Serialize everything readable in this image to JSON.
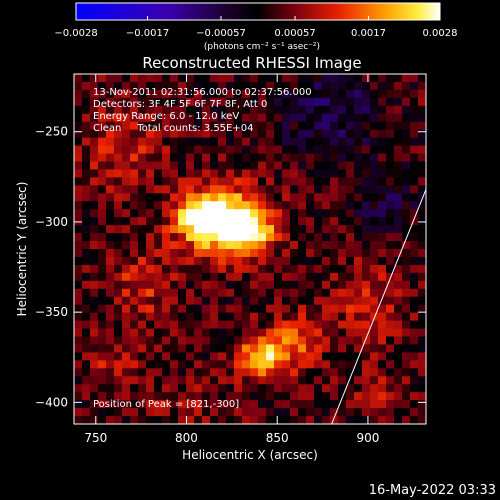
{
  "chart_data": {
    "type": "heatmap",
    "title": "Reconstructed RHESSI Image",
    "xlabel": "Heliocentric X (arcsec)",
    "ylabel": "Heliocentric Y (arcsec)",
    "xlim": [
      738,
      932
    ],
    "ylim": [
      -412,
      -218
    ],
    "x_ticks": [
      750,
      800,
      850,
      900
    ],
    "y_ticks": [
      -250,
      -300,
      -350,
      -400
    ],
    "x_tick_labels": [
      "750",
      "800",
      "850",
      "900"
    ],
    "y_tick_labels": [
      "−250",
      "−300",
      "−350",
      "−400"
    ],
    "colorbar": {
      "min": -0.0028,
      "max": 0.0028,
      "ticks": [
        -0.0028,
        -0.0017,
        -0.00057,
        0.00057,
        0.0017,
        0.0028
      ],
      "tick_labels": [
        "−0.0028",
        "−0.0017",
        "−0.00057",
        "0.00057",
        "0.0017",
        "0.0028"
      ],
      "units_label": "(photons cm⁻² s⁻¹ asec⁻²)",
      "colormap": "blue-purple-red-yellow-white"
    },
    "annotations": [
      "13-Nov-2011 02:31:56.000 to 02:37:56.000",
      "Detectors: 3F 4F 5F 6F 7F 8F, Att 0",
      "Energy Range: 6.0 - 12.0 keV",
      "Clean     Total counts: 3.55E+04"
    ],
    "peak_label": "Position of Peak = [821,-300]",
    "peak_position": [
      821,
      -300
    ],
    "sources": [
      {
        "x": 821,
        "y": -300,
        "rx": 22,
        "ry": 18,
        "amp": 0.0028
      },
      {
        "x": 806,
        "y": -297,
        "rx": 14,
        "ry": 12,
        "amp": 0.0014
      },
      {
        "x": 838,
        "y": -306,
        "rx": 13,
        "ry": 11,
        "amp": 0.0011
      },
      {
        "x": 842,
        "y": -375,
        "rx": 15,
        "ry": 12,
        "amp": 0.0019
      },
      {
        "x": 860,
        "y": -365,
        "rx": 14,
        "ry": 14,
        "amp": 0.0011
      },
      {
        "x": 765,
        "y": -260,
        "rx": 22,
        "ry": 22,
        "amp": 0.0008
      },
      {
        "x": 775,
        "y": -335,
        "rx": 18,
        "ry": 22,
        "amp": 0.0008
      },
      {
        "x": 760,
        "y": -380,
        "rx": 16,
        "ry": 14,
        "amp": 0.0006
      },
      {
        "x": 900,
        "y": -345,
        "rx": 18,
        "ry": 24,
        "amp": 0.0008
      },
      {
        "x": 905,
        "y": -395,
        "rx": 16,
        "ry": 12,
        "amp": 0.0005
      },
      {
        "x": 800,
        "y": -400,
        "rx": 20,
        "ry": 10,
        "amp": 0.0005
      },
      {
        "x": 880,
        "y": -240,
        "rx": 28,
        "ry": 24,
        "amp": -0.0009
      },
      {
        "x": 910,
        "y": -290,
        "rx": 18,
        "ry": 20,
        "amp": -0.0006
      }
    ],
    "limb_line": {
      "x1": 880,
      "y1": -412,
      "x2": 932,
      "y2": -282
    },
    "footer": "16-May-2022 03:33"
  }
}
